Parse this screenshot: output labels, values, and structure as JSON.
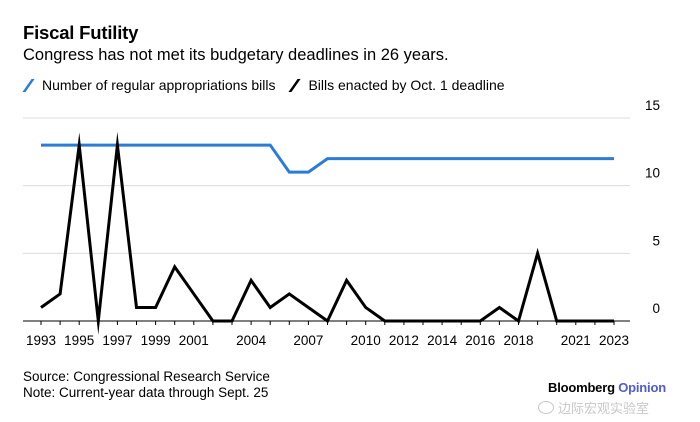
{
  "header": {
    "title": "Fiscal Futility",
    "subtitle": "Congress has not met its budgetary deadlines in 26 years."
  },
  "legend": [
    {
      "label": "Number of regular appropriations bills",
      "color": "#2b7bdb"
    },
    {
      "label": "Bills enacted by Oct. 1 deadline",
      "color": "#000000"
    }
  ],
  "footer": {
    "source": "Source: Congressional Research Service",
    "note": "Note: Current-year data through Sept. 25",
    "brand_main": "Bloomberg",
    "brand_accent": "Opinion",
    "brand_accent_color": "#4f5bd5",
    "watermark": "边际宏观实验室",
    "watermark_icon": "weibo-icon"
  },
  "chart_data": {
    "type": "line",
    "x": [
      1993,
      1994,
      1995,
      1996,
      1997,
      1998,
      1999,
      2000,
      2001,
      2002,
      2003,
      2004,
      2005,
      2006,
      2007,
      2008,
      2009,
      2010,
      2011,
      2012,
      2013,
      2014,
      2015,
      2016,
      2017,
      2018,
      2019,
      2020,
      2021,
      2022,
      2023
    ],
    "series": [
      {
        "name": "Number of regular appropriations bills",
        "color": "#2b7bdb",
        "values": [
          13,
          13,
          13,
          13,
          13,
          13,
          13,
          13,
          13,
          13,
          13,
          13,
          13,
          11,
          11,
          12,
          12,
          12,
          12,
          12,
          12,
          12,
          12,
          12,
          12,
          12,
          12,
          12,
          12,
          12,
          12
        ]
      },
      {
        "name": "Bills enacted by Oct. 1 deadline",
        "color": "#000000",
        "values": [
          1,
          2,
          13,
          0,
          13,
          1,
          1,
          4,
          2,
          0,
          0,
          3,
          1,
          2,
          1,
          0,
          3,
          1,
          0,
          0,
          0,
          0,
          0,
          0,
          1,
          0,
          5,
          0,
          0,
          0,
          0
        ]
      }
    ],
    "x_ticks": [
      "1993",
      "1995",
      "1997",
      "1999",
      "2001",
      "2004",
      "2007",
      "2010",
      "2012",
      "2014",
      "2016",
      "2018",
      "2021",
      "2023"
    ],
    "x_tick_values": [
      1993,
      1995,
      1997,
      1999,
      2001,
      2004,
      2007,
      2010,
      2012,
      2014,
      2016,
      2018,
      2021,
      2023
    ],
    "y_ticks": [
      "0",
      "5",
      "10",
      "15"
    ],
    "y_tick_values": [
      0,
      5,
      10,
      15
    ],
    "ylim": [
      0,
      15
    ],
    "xlim": [
      1993,
      2023
    ],
    "y_axis_side": "right",
    "grid": true
  }
}
